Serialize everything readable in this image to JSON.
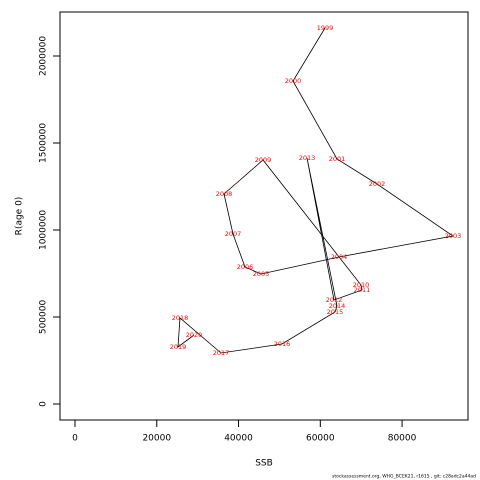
{
  "chart_data": {
    "type": "line",
    "x_label": "SSB",
    "y_label": "R(age 0)",
    "footer": "stockassessment.org, WHG_BCEK21, r1615 , git: c28adc2a44ad",
    "point_labels": [
      "1999",
      "2000",
      "2001",
      "2002",
      "2003",
      "2004",
      "2005",
      "2006",
      "2007",
      "2008",
      "2009",
      "2010",
      "2011",
      "2012",
      "2013",
      "2014",
      "2015",
      "2016",
      "2017",
      "2018",
      "2019",
      "2020"
    ],
    "x": [
      61150,
      53320,
      64090,
      73870,
      92460,
      64570,
      45500,
      41580,
      38650,
      36450,
      45990,
      69960,
      70200,
      63350,
      56750,
      64090,
      63600,
      50630,
      35710,
      25680,
      25190,
      29110
    ],
    "values": [
      2160900,
      1856300,
      1408000,
      1264300,
      965500,
      844800,
      747100,
      787300,
      977000,
      1206900,
      1402300,
      683900,
      655200,
      597700,
      1413800,
      563200,
      528700,
      344800,
      293100,
      494200,
      327600,
      396500
    ],
    "line_color": "#000000",
    "label_color": "#ff0000",
    "xlim": [
      -3670,
      96130
    ],
    "ylim": [
      -92000,
      2252800
    ],
    "xticks": [
      0,
      20000,
      40000,
      60000,
      80000
    ],
    "yticks": [
      0,
      500000,
      1000000,
      1500000,
      2000000
    ]
  }
}
